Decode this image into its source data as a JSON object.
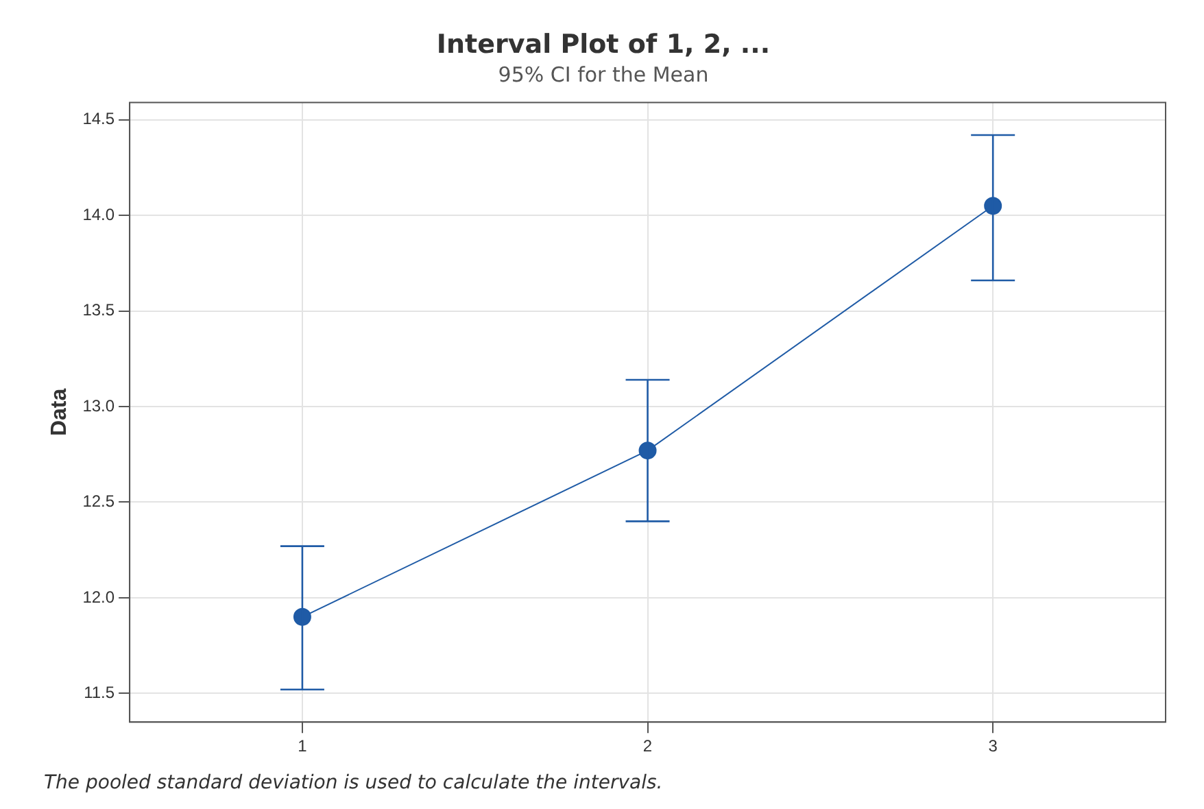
{
  "chart_data": {
    "type": "line",
    "title": "Interval Plot of 1, 2, ...",
    "subtitle": "95% CI for the Mean",
    "ylabel": "Data",
    "categories": [
      "1",
      "2",
      "3"
    ],
    "series": [
      {
        "color": "#1f5ba6",
        "values": [
          11.9,
          12.77,
          14.05
        ],
        "errors": [
          [
            11.52,
            12.27
          ],
          [
            12.4,
            13.14
          ],
          [
            13.66,
            14.42
          ]
        ]
      }
    ],
    "ylim": [
      11.35,
      14.59
    ],
    "yticks": [
      11.5,
      {
        "value": 12,
        "label": "12.0"
      },
      12.5,
      {
        "value": 13,
        "label": "13.0"
      },
      13.5,
      {
        "value": 14,
        "label": "14.0"
      },
      14.5
    ],
    "grid": true,
    "legend": false,
    "marker": "circle",
    "line_style": "solid",
    "annotations": [
      "The pooled standard deviation is used to calculate the intervals."
    ]
  }
}
